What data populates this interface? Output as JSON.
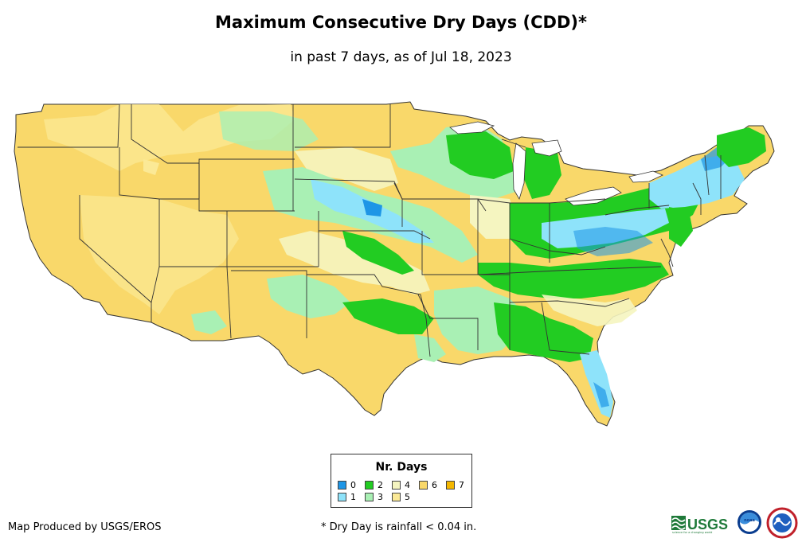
{
  "title": "Maximum Consecutive Dry Days (CDD)*",
  "subtitle": "in past 7 days, as of Jul 18, 2023",
  "legend": {
    "title": "Nr. Days",
    "items": [
      {
        "label": "0",
        "color": "#1e96e6"
      },
      {
        "label": "1",
        "color": "#8ee3fa"
      },
      {
        "label": "2",
        "color": "#22cc22"
      },
      {
        "label": "3",
        "color": "#a9f0b4"
      },
      {
        "label": "4",
        "color": "#f5f5c0"
      },
      {
        "label": "5",
        "color": "#fbe996"
      },
      {
        "label": "6",
        "color": "#f9d86a"
      },
      {
        "label": "7",
        "color": "#f4b700"
      }
    ]
  },
  "credit": "Map Produced by USGS/EROS",
  "footnote": "* Dry Day is rainfall < 0.04 in.",
  "logos": {
    "usgs_text": "USGS",
    "usgs_tagline": "science for a changing world",
    "noaa_text": "noaa"
  },
  "colors": {
    "base": "#f9d86a",
    "border": "#333333"
  }
}
